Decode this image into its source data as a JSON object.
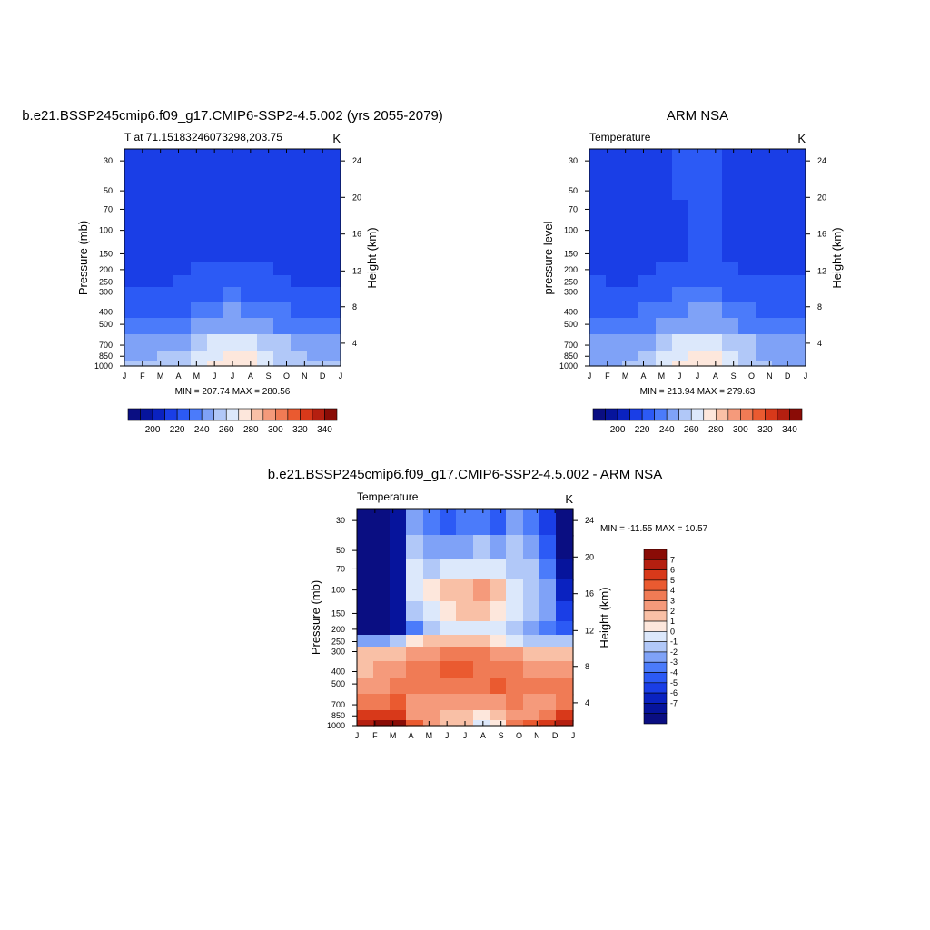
{
  "palette": {
    "temp_levels": [
      "#0a0e82",
      "#06149c",
      "#0a22c0",
      "#1a3ee6",
      "#2c5af5",
      "#4b7bfa",
      "#7fa2f7",
      "#b1c8f8",
      "#dce8fb",
      "#fde7dc",
      "#f9c0a6",
      "#f59a7b",
      "#f07b55",
      "#ea5a30",
      "#d8391a",
      "#b51f10",
      "#8a0c06"
    ],
    "diff_levels": [
      "#0a0e82",
      "#06149c",
      "#0a22c0",
      "#1a3ee6",
      "#2c5af5",
      "#4b7bfa",
      "#7fa2f7",
      "#b1c8f8",
      "#dce8fb",
      "#fde7dc",
      "#f9c0a6",
      "#f59a7b",
      "#f07b55",
      "#ea5a30",
      "#d8391a",
      "#b51f10",
      "#8a0c06"
    ]
  },
  "chart_data": [
    {
      "type": "heatmap",
      "title": "b.e21.BSSP245cmip6.f09_g17.CMIP6-SSP2-4.5.002 (yrs 2055-2079)",
      "subtitle_left": "T at 71.15183246073298,203.75",
      "subtitle_right": "K",
      "ylabel": "Pressure (mb)",
      "ylabel_right": "Height (km)",
      "x_ticks": [
        "J",
        "F",
        "M",
        "A",
        "M",
        "J",
        "J",
        "A",
        "S",
        "O",
        "N",
        "D",
        "J"
      ],
      "y_ticks": [
        "30",
        "50",
        "70",
        "100",
        "150",
        "200",
        "250",
        "300",
        "400",
        "500",
        "700",
        "850",
        "1000"
      ],
      "y_ticks_right": [
        "24",
        "20",
        "16",
        "12",
        "8",
        "4"
      ],
      "stats": "MIN = 207.74 MAX = 280.56",
      "colorbar_labels": [
        "200",
        "220",
        "240",
        "260",
        "280",
        "300",
        "320",
        "340"
      ],
      "pressure_levels_mb": [
        30,
        50,
        70,
        100,
        150,
        200,
        250,
        300,
        400,
        500,
        700,
        850,
        1000
      ],
      "temperature_K": [
        [
          213,
          214,
          214,
          215,
          216,
          217,
          218,
          219,
          218,
          216,
          214,
          213,
          213
        ],
        [
          214,
          215,
          216,
          217,
          217,
          218,
          219,
          219,
          218,
          217,
          215,
          214,
          214
        ],
        [
          215,
          215,
          216,
          217,
          217,
          218,
          219,
          219,
          218,
          217,
          215,
          215,
          215
        ],
        [
          216,
          216,
          216,
          217,
          218,
          219,
          219,
          219,
          218,
          217,
          216,
          216,
          216
        ],
        [
          217,
          217,
          217,
          218,
          219,
          219,
          219,
          219,
          219,
          218,
          217,
          217,
          217
        ],
        [
          218,
          218,
          218,
          219,
          220,
          221,
          222,
          221,
          220,
          219,
          218,
          218,
          218
        ],
        [
          219,
          219,
          219,
          220,
          222,
          224,
          225,
          224,
          222,
          220,
          219,
          219,
          219
        ],
        [
          221,
          221,
          221,
          222,
          225,
          228,
          230,
          229,
          226,
          222,
          221,
          221,
          221
        ],
        [
          226,
          226,
          227,
          229,
          234,
          238,
          240,
          239,
          235,
          230,
          227,
          226,
          226
        ],
        [
          232,
          232,
          234,
          237,
          243,
          247,
          249,
          248,
          244,
          238,
          234,
          232,
          232
        ],
        [
          243,
          243,
          245,
          249,
          256,
          261,
          263,
          262,
          257,
          250,
          245,
          243,
          243
        ],
        [
          248,
          248,
          250,
          255,
          262,
          268,
          271,
          270,
          264,
          256,
          250,
          248,
          248
        ],
        [
          250,
          250,
          252,
          258,
          266,
          274,
          279,
          277,
          269,
          259,
          252,
          250,
          250
        ]
      ]
    },
    {
      "type": "heatmap",
      "title": "ARM NSA",
      "subtitle_left": "Temperature",
      "subtitle_right": "K",
      "ylabel": "pressure level",
      "ylabel_right": "Height (km)",
      "x_ticks": [
        "J",
        "F",
        "M",
        "A",
        "M",
        "J",
        "J",
        "A",
        "S",
        "O",
        "N",
        "D",
        "J"
      ],
      "y_ticks": [
        "30",
        "50",
        "70",
        "100",
        "150",
        "200",
        "250",
        "300",
        "400",
        "500",
        "700",
        "850",
        "1000"
      ],
      "y_ticks_right": [
        "24",
        "20",
        "16",
        "12",
        "8",
        "4"
      ],
      "stats": "MIN = 213.94 MAX = 279.63",
      "colorbar_labels": [
        "200",
        "220",
        "240",
        "260",
        "280",
        "300",
        "320",
        "340"
      ],
      "pressure_levels_mb": [
        30,
        50,
        70,
        100,
        150,
        200,
        250,
        300,
        400,
        500,
        700,
        850,
        1000
      ],
      "temperature_K": [
        [
          216,
          216,
          217,
          218,
          219,
          221,
          222,
          221,
          219,
          217,
          216,
          216,
          216
        ],
        [
          216,
          216,
          217,
          218,
          219,
          220,
          221,
          221,
          219,
          217,
          216,
          216,
          216
        ],
        [
          216,
          216,
          216,
          217,
          218,
          219,
          220,
          220,
          219,
          217,
          216,
          216,
          216
        ],
        [
          216,
          216,
          216,
          217,
          218,
          219,
          220,
          220,
          219,
          218,
          217,
          216,
          216
        ],
        [
          217,
          216,
          216,
          217,
          218,
          219,
          220,
          220,
          219,
          218,
          217,
          217,
          217
        ],
        [
          218,
          217,
          217,
          218,
          220,
          221,
          222,
          222,
          220,
          219,
          218,
          218,
          218
        ],
        [
          220,
          219,
          219,
          221,
          223,
          225,
          226,
          225,
          223,
          221,
          220,
          220,
          220
        ],
        [
          223,
          222,
          222,
          224,
          227,
          230,
          231,
          230,
          227,
          224,
          223,
          223,
          223
        ],
        [
          227,
          227,
          228,
          231,
          235,
          239,
          241,
          240,
          236,
          231,
          228,
          227,
          227
        ],
        [
          233,
          233,
          235,
          238,
          243,
          247,
          249,
          248,
          244,
          239,
          235,
          233,
          233
        ],
        [
          243,
          243,
          245,
          249,
          255,
          260,
          263,
          262,
          257,
          250,
          245,
          243,
          243
        ],
        [
          247,
          247,
          249,
          254,
          261,
          267,
          271,
          270,
          264,
          255,
          249,
          247,
          247
        ],
        [
          248,
          248,
          250,
          256,
          264,
          272,
          278,
          276,
          268,
          258,
          250,
          248,
          248
        ]
      ]
    },
    {
      "type": "heatmap",
      "title": "b.e21.BSSP245cmip6.f09_g17.CMIP6-SSP2-4.5.002 - ARM NSA",
      "subtitle_left": "Temperature",
      "subtitle_right": "K",
      "ylabel": "Pressure (mb)",
      "ylabel_right": "Height (km)",
      "x_ticks": [
        "J",
        "F",
        "M",
        "A",
        "M",
        "J",
        "J",
        "A",
        "S",
        "O",
        "N",
        "D",
        "J"
      ],
      "y_ticks": [
        "30",
        "50",
        "70",
        "100",
        "150",
        "200",
        "250",
        "300",
        "400",
        "500",
        "700",
        "850",
        "1000"
      ],
      "y_ticks_right": [
        "24",
        "20",
        "16",
        "12",
        "8",
        "4"
      ],
      "stats": "MIN = -11.55 MAX =  10.57",
      "colorbar_labels": [
        "7",
        "6",
        "5",
        "4",
        "3",
        "2",
        "1",
        "0",
        "-1",
        "-2",
        "-3",
        "-4",
        "-5",
        "-6",
        "-7"
      ],
      "pressure_levels_mb": [
        30,
        50,
        70,
        100,
        150,
        200,
        250,
        300,
        400,
        500,
        700,
        850,
        1000
      ],
      "temperature_difference_K": [
        [
          -9,
          -9,
          -8,
          -3,
          -4,
          -5,
          -4,
          -4,
          -5,
          -3,
          -4,
          -6,
          -9
        ],
        [
          -9,
          -9,
          -8,
          -2,
          -3,
          -3,
          -3,
          -2,
          -3,
          -2,
          -3,
          -5,
          -9
        ],
        [
          -9,
          -9,
          -8,
          -1,
          -2,
          -1,
          -1,
          -1,
          -1,
          -2,
          -2,
          -4,
          -8
        ],
        [
          -9,
          -9,
          -8,
          -1,
          0,
          1,
          1,
          2,
          1,
          -1,
          -2,
          -3,
          -7
        ],
        [
          -9,
          -9,
          -8,
          -2,
          -1,
          0,
          1,
          1,
          0,
          -1,
          -2,
          -3,
          -6
        ],
        [
          -9,
          -9,
          -8,
          -4,
          -2,
          -1,
          -1,
          -1,
          -1,
          -2,
          -3,
          -4,
          -5
        ],
        [
          -3,
          -3,
          -2,
          0,
          1,
          1,
          1,
          1,
          0,
          -1,
          -2,
          -2,
          -2
        ],
        [
          1,
          1,
          1,
          2,
          2,
          3,
          3,
          3,
          2,
          2,
          1,
          1,
          1
        ],
        [
          1,
          2,
          2,
          3,
          3,
          4,
          4,
          3,
          3,
          3,
          2,
          2,
          2
        ],
        [
          2,
          2,
          3,
          3,
          3,
          3,
          3,
          3,
          4,
          3,
          3,
          3,
          3
        ],
        [
          3,
          3,
          4,
          2,
          2,
          2,
          2,
          2,
          2,
          3,
          2,
          2,
          3
        ],
        [
          5,
          5,
          5,
          2,
          2,
          1,
          1,
          0,
          1,
          2,
          2,
          3,
          5
        ],
        [
          6,
          7,
          8,
          4,
          2,
          1,
          1,
          -1,
          0,
          3,
          4,
          5,
          6
        ]
      ]
    }
  ]
}
